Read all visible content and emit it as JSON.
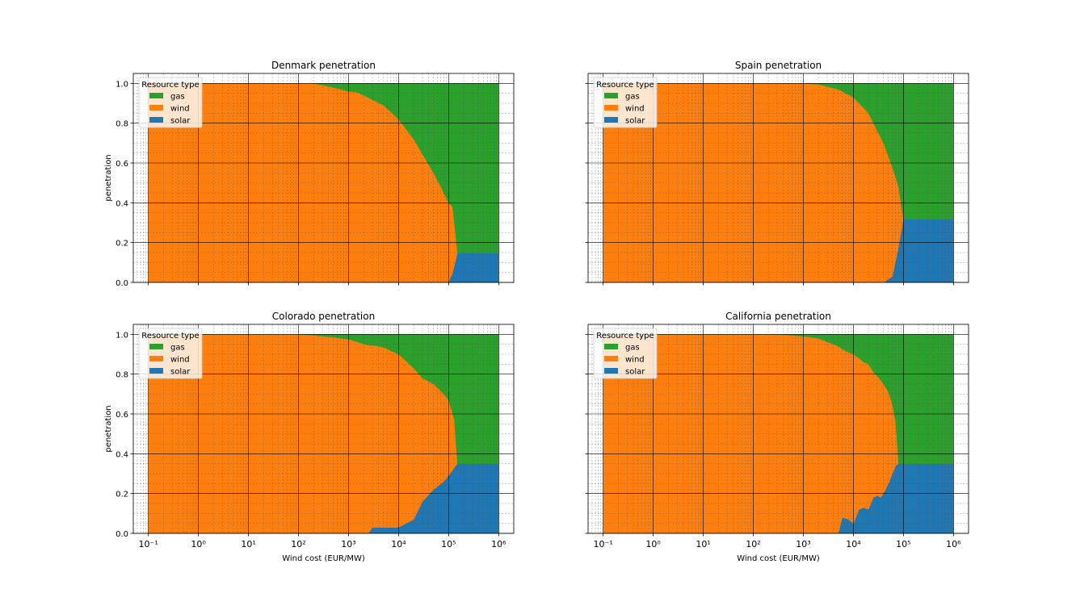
{
  "colors": {
    "gas": "#2ca02c",
    "wind": "#ff7f0e",
    "solar": "#1f77b4"
  },
  "chart_data": [
    {
      "type": "area",
      "title": "Denmark penetration",
      "xlabel": "",
      "ylabel": "penetration",
      "xscale": "log",
      "xlim": [
        0.05,
        2000000
      ],
      "ylim": [
        0,
        1.05
      ],
      "grid": true,
      "legend": {
        "title": "Resource type",
        "entries": [
          "gas",
          "wind",
          "solar"
        ],
        "placement": "upper-left"
      },
      "x_tick_labels": [
        "10⁻¹",
        "10⁰",
        "10¹",
        "10²",
        "10³",
        "10⁴",
        "10⁵",
        "10⁶"
      ],
      "y_tick_labels": [
        "0.0",
        "0.2",
        "0.4",
        "0.6",
        "0.8",
        "1.0"
      ],
      "x": [
        0.1,
        100,
        150,
        200,
        500,
        1000,
        1500,
        2000,
        5000,
        10000,
        20000,
        50000,
        70000,
        100000,
        120000,
        150000,
        1000000
      ],
      "series": [
        {
          "name": "solar",
          "values": [
            0,
            0,
            0,
            0,
            0,
            0,
            0,
            0,
            0,
            0,
            0,
            0,
            0,
            0,
            0.05,
            0.15,
            0.15
          ]
        },
        {
          "name": "wind",
          "values": [
            1,
            1,
            1,
            1,
            0.98,
            0.96,
            0.955,
            0.94,
            0.89,
            0.82,
            0.72,
            0.55,
            0.48,
            0.4,
            0.33,
            0.0,
            0.0
          ]
        },
        {
          "name": "gas",
          "values": [
            0,
            0,
            0,
            0,
            0.02,
            0.04,
            0.045,
            0.06,
            0.11,
            0.18,
            0.28,
            0.45,
            0.52,
            0.6,
            0.62,
            0.85,
            0.85
          ]
        }
      ]
    },
    {
      "type": "area",
      "title": "Spain penetration",
      "xlabel": "",
      "ylabel": "",
      "xscale": "log",
      "xlim": [
        0.05,
        2000000
      ],
      "ylim": [
        0,
        1.05
      ],
      "grid": true,
      "legend": {
        "title": "Resource type",
        "entries": [
          "gas",
          "wind",
          "solar"
        ],
        "placement": "upper-left"
      },
      "x_tick_labels": [
        "10⁻¹",
        "10⁰",
        "10¹",
        "10²",
        "10³",
        "10⁴",
        "10⁵",
        "10⁶"
      ],
      "y_tick_labels": [
        "0.0",
        "0.2",
        "0.4",
        "0.6",
        "0.8",
        "1.0"
      ],
      "x": [
        0.1,
        500,
        1000,
        2000,
        5000,
        10000,
        20000,
        40000,
        60000,
        80000,
        100000,
        1000000
      ],
      "series": [
        {
          "name": "solar",
          "values": [
            0,
            0,
            0,
            0,
            0,
            0,
            0,
            0,
            0.03,
            0.18,
            0.32,
            0.32
          ]
        },
        {
          "name": "wind",
          "values": [
            1,
            1,
            1,
            0.995,
            0.97,
            0.93,
            0.85,
            0.7,
            0.55,
            0.3,
            0.0,
            0.0
          ]
        },
        {
          "name": "gas",
          "values": [
            0,
            0,
            0,
            0.005,
            0.03,
            0.07,
            0.15,
            0.3,
            0.42,
            0.52,
            0.68,
            0.68
          ]
        }
      ]
    },
    {
      "type": "area",
      "title": "Colorado penetration",
      "xlabel": "Wind cost (EUR/MW)",
      "ylabel": "penetration",
      "xscale": "log",
      "xlim": [
        0.05,
        2000000
      ],
      "ylim": [
        0,
        1.05
      ],
      "grid": true,
      "legend": {
        "title": "Resource type",
        "entries": [
          "gas",
          "wind",
          "solar"
        ],
        "placement": "upper-left"
      },
      "x_tick_labels": [
        "10⁻¹",
        "10⁰",
        "10¹",
        "10²",
        "10³",
        "10⁴",
        "10⁵",
        "10⁶"
      ],
      "y_tick_labels": [
        "0.0",
        "0.2",
        "0.4",
        "0.6",
        "0.8",
        "1.0"
      ],
      "x": [
        0.1,
        100,
        200,
        500,
        1000,
        2500,
        3000,
        5000,
        10000,
        20000,
        30000,
        50000,
        80000,
        100000,
        130000,
        150000,
        1000000
      ],
      "series": [
        {
          "name": "solar",
          "values": [
            0,
            0,
            0,
            0,
            0,
            0,
            0.03,
            0.03,
            0.03,
            0.07,
            0.16,
            0.22,
            0.26,
            0.29,
            0.33,
            0.35,
            0.35
          ]
        },
        {
          "name": "wind",
          "values": [
            1,
            1,
            0.995,
            0.985,
            0.975,
            0.945,
            0.915,
            0.905,
            0.87,
            0.76,
            0.62,
            0.53,
            0.44,
            0.38,
            0.24,
            0.0,
            0.0
          ]
        },
        {
          "name": "gas",
          "values": [
            0,
            0,
            0.005,
            0.015,
            0.025,
            0.055,
            0.055,
            0.065,
            0.1,
            0.17,
            0.22,
            0.25,
            0.3,
            0.33,
            0.43,
            0.65,
            0.65
          ]
        }
      ]
    },
    {
      "type": "area",
      "title": "California penetration",
      "xlabel": "Wind cost (EUR/MW)",
      "ylabel": "",
      "xscale": "log",
      "xlim": [
        0.05,
        2000000
      ],
      "ylim": [
        0,
        1.05
      ],
      "grid": true,
      "legend": {
        "title": "Resource type",
        "entries": [
          "gas",
          "wind",
          "solar"
        ],
        "placement": "upper-left"
      },
      "x_tick_labels": [
        "10⁻¹",
        "10⁰",
        "10¹",
        "10²",
        "10³",
        "10⁴",
        "10⁵",
        "10⁶"
      ],
      "y_tick_labels": [
        "0.0",
        "0.2",
        "0.4",
        "0.6",
        "0.8",
        "1.0"
      ],
      "x": [
        0.1,
        300,
        1000,
        2000,
        4000,
        5000,
        6000,
        8000,
        10000,
        13000,
        16000,
        20000,
        25000,
        30000,
        35000,
        40000,
        50000,
        60000,
        70000,
        80000,
        90000,
        1000000
      ],
      "series": [
        {
          "name": "solar",
          "values": [
            0,
            0,
            0,
            0,
            0,
            0,
            0.08,
            0.07,
            0.05,
            0.12,
            0.13,
            0.12,
            0.18,
            0.19,
            0.18,
            0.2,
            0.25,
            0.3,
            0.34,
            0.35,
            0.35,
            0.35
          ]
        },
        {
          "name": "wind",
          "values": [
            1,
            1,
            0.99,
            0.98,
            0.95,
            0.94,
            0.845,
            0.84,
            0.85,
            0.76,
            0.73,
            0.73,
            0.63,
            0.6,
            0.59,
            0.55,
            0.46,
            0.35,
            0.22,
            0.0,
            0.0,
            0.0
          ]
        },
        {
          "name": "gas",
          "values": [
            0,
            0,
            0.01,
            0.02,
            0.05,
            0.06,
            0.075,
            0.09,
            0.1,
            0.12,
            0.14,
            0.15,
            0.19,
            0.21,
            0.23,
            0.25,
            0.29,
            0.35,
            0.44,
            0.65,
            0.65,
            0.65
          ]
        }
      ]
    }
  ]
}
